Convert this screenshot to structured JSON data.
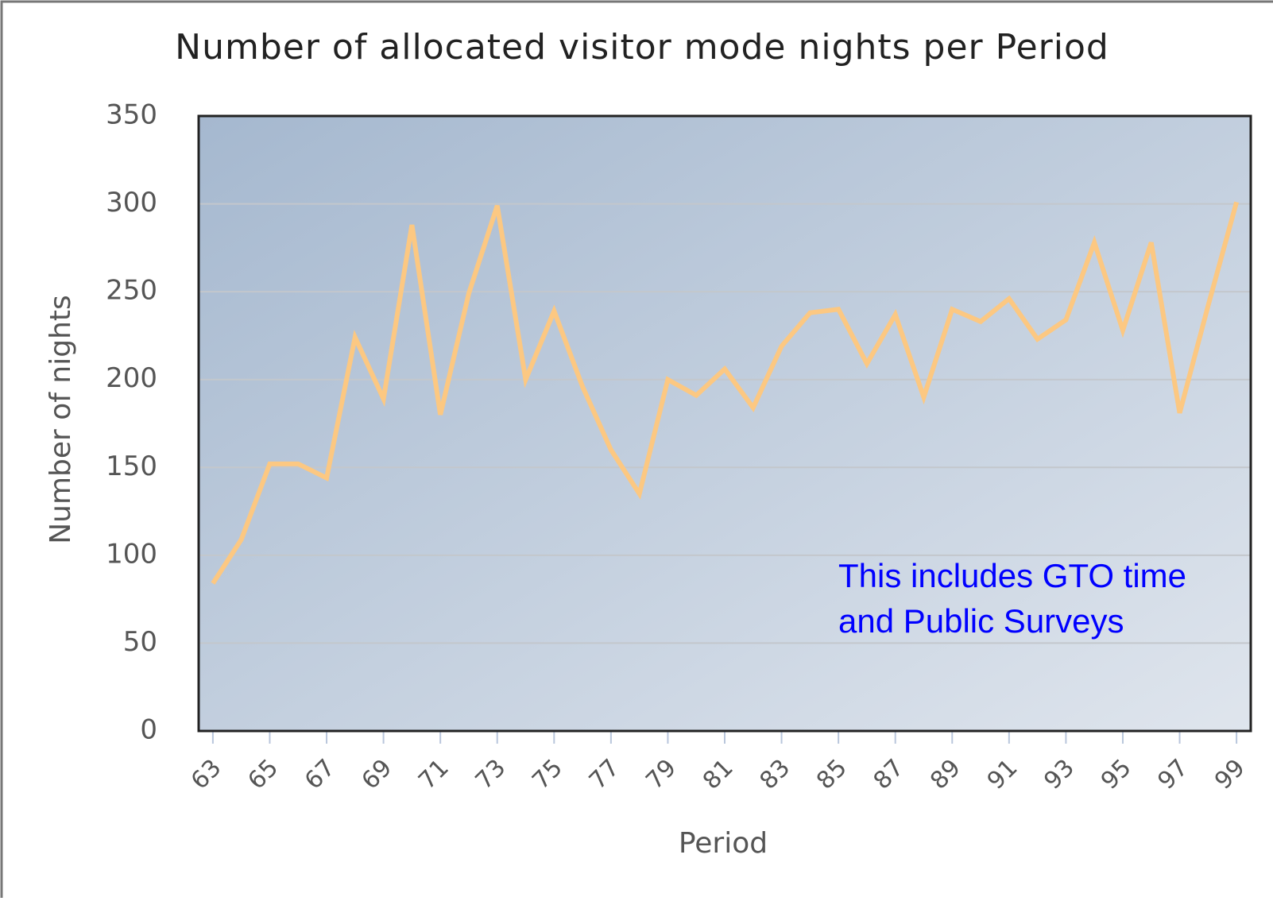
{
  "chart_data": {
    "type": "line",
    "title": "Number of allocated visitor mode nights per Period",
    "xlabel": "Period",
    "ylabel": "Number of nights",
    "annotation": [
      "This includes GTO time",
      "and Public Surveys"
    ],
    "x": [
      63,
      64,
      65,
      66,
      67,
      68,
      69,
      70,
      71,
      72,
      73,
      74,
      75,
      76,
      77,
      78,
      79,
      80,
      81,
      82,
      83,
      84,
      85,
      86,
      87,
      88,
      89,
      90,
      91,
      92,
      93,
      94,
      95,
      96,
      97,
      98,
      99
    ],
    "series": [
      {
        "color": "#fcc882",
        "values": [
          84,
          109,
          152,
          152,
          144,
          224,
          189,
          288,
          180,
          249,
          299,
          200,
          239,
          196,
          160,
          135,
          200,
          191,
          206,
          184,
          219,
          238,
          240,
          209,
          237,
          190,
          240,
          233,
          246,
          223,
          234,
          278,
          228,
          278,
          181,
          242,
          301
        ]
      }
    ],
    "xlim": [
      62.5,
      99.5
    ],
    "xticks": [
      63,
      65,
      67,
      69,
      71,
      73,
      75,
      77,
      79,
      81,
      83,
      85,
      87,
      89,
      91,
      93,
      95,
      97,
      99
    ],
    "ylim": [
      0,
      350
    ],
    "yticks": [
      0,
      50,
      100,
      150,
      200,
      250,
      300,
      350
    ],
    "grid": true
  }
}
